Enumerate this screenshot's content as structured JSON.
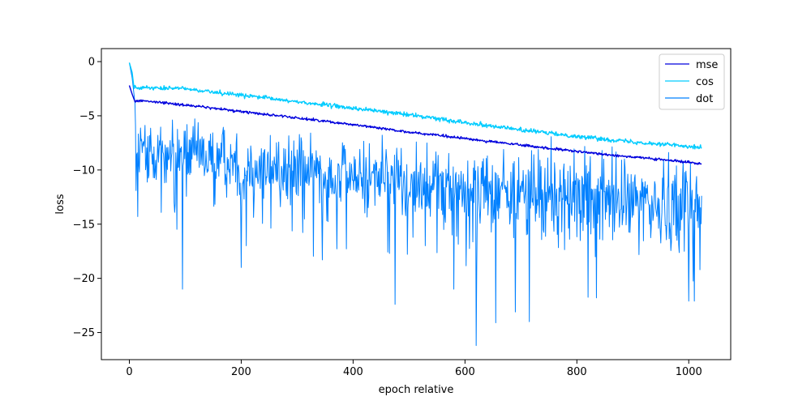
{
  "chart_data": {
    "type": "line",
    "title": "",
    "xlabel": "epoch relative",
    "ylabel": "loss",
    "xlim": [
      -50,
      1075
    ],
    "ylim": [
      -27.5,
      1.2
    ],
    "xticks": [
      0,
      200,
      400,
      600,
      800,
      1000
    ],
    "yticks": [
      0,
      -5,
      -10,
      -15,
      -20,
      -25
    ],
    "xtick_labels": [
      "0",
      "200",
      "400",
      "600",
      "800",
      "1000"
    ],
    "ytick_labels": [
      "0",
      "−5",
      "−10",
      "−15",
      "−20",
      "−25"
    ],
    "grid": false,
    "legend_position": "top-right",
    "n_points": 1024,
    "series": [
      {
        "name": "mse",
        "color": "#0000dd",
        "keypoints": [
          [
            0,
            -2.2
          ],
          [
            5,
            -3.0
          ],
          [
            10,
            -3.7
          ],
          [
            20,
            -3.6
          ],
          [
            100,
            -4.0
          ],
          [
            200,
            -4.6
          ],
          [
            300,
            -5.2
          ],
          [
            400,
            -5.8
          ],
          [
            500,
            -6.5
          ],
          [
            600,
            -7.1
          ],
          [
            700,
            -7.7
          ],
          [
            800,
            -8.3
          ],
          [
            900,
            -8.8
          ],
          [
            1023,
            -9.4
          ]
        ]
      },
      {
        "name": "cos",
        "color": "#00ccff",
        "keypoints": [
          [
            0,
            -0.1
          ],
          [
            5,
            -1.0
          ],
          [
            8,
            -2.3
          ],
          [
            20,
            -2.4
          ],
          [
            100,
            -2.5
          ],
          [
            200,
            -3.1
          ],
          [
            300,
            -3.7
          ],
          [
            400,
            -4.3
          ],
          [
            500,
            -4.9
          ],
          [
            600,
            -5.6
          ],
          [
            700,
            -6.3
          ],
          [
            800,
            -6.9
          ],
          [
            900,
            -7.4
          ],
          [
            1023,
            -7.9
          ]
        ]
      },
      {
        "name": "dot",
        "color": "#0080ff",
        "keypoints": [
          [
            0,
            -0.1
          ],
          [
            5,
            -1.5
          ],
          [
            10,
            -3.8
          ],
          [
            12,
            -8.0
          ],
          [
            100,
            -8.5
          ],
          [
            200,
            -9.5
          ],
          [
            300,
            -10.0
          ],
          [
            400,
            -10.5
          ],
          [
            500,
            -11.0
          ],
          [
            600,
            -11.5
          ],
          [
            700,
            -12.0
          ],
          [
            800,
            -12.3
          ],
          [
            900,
            -12.7
          ],
          [
            1023,
            -13.0
          ]
        ],
        "spikes": [
          [
            12,
            -11.9
          ],
          [
            15,
            -14.3
          ],
          [
            95,
            -21.0
          ],
          [
            200,
            -19.0
          ],
          [
            345,
            -18.3
          ],
          [
            475,
            -22.4
          ],
          [
            580,
            -21.0
          ],
          [
            620,
            -26.2
          ],
          [
            655,
            -24.1
          ],
          [
            690,
            -23.1
          ],
          [
            715,
            -24.0
          ],
          [
            835,
            -21.8
          ],
          [
            1000,
            -22.1
          ],
          [
            1010,
            -22.1
          ],
          [
            1020,
            -19.2
          ]
        ]
      }
    ]
  }
}
